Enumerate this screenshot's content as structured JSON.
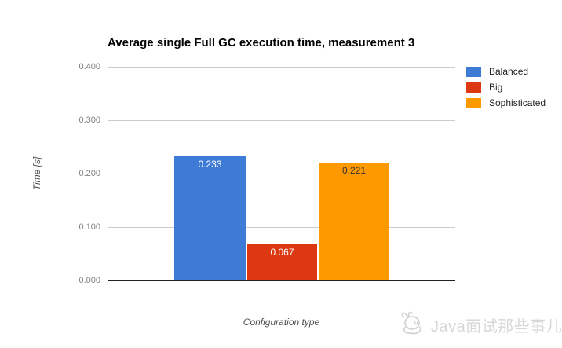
{
  "chart_data": {
    "type": "bar",
    "title": "Average single Full GC execution time, measurement 3",
    "categories": [
      "Balanced",
      "Big",
      "Sophisticated"
    ],
    "values": [
      0.233,
      0.067,
      0.221
    ],
    "value_labels": [
      "0.233",
      "0.067",
      "0.221"
    ],
    "bar_colors": [
      "#3E7BD6",
      "#DC3912",
      "#FF9900"
    ],
    "value_label_colors": [
      "#ffffff",
      "#ffffff",
      "#333333"
    ],
    "xlabel": "Configuration type",
    "ylabel": "Time [s]",
    "ylim": [
      0,
      0.4
    ],
    "yticks": [
      "0.400",
      "0.300",
      "0.200",
      "0.100",
      "0.000"
    ],
    "grid": true,
    "legend_position": "right",
    "legend": [
      {
        "label": "Balanced",
        "color": "#3E7BD6"
      },
      {
        "label": "Big",
        "color": "#DC3912"
      },
      {
        "label": "Sophisticated",
        "color": "#FF9900"
      }
    ]
  },
  "watermark": {
    "text": "Java面试那些事儿",
    "icon": "doodle-cat-icon"
  }
}
